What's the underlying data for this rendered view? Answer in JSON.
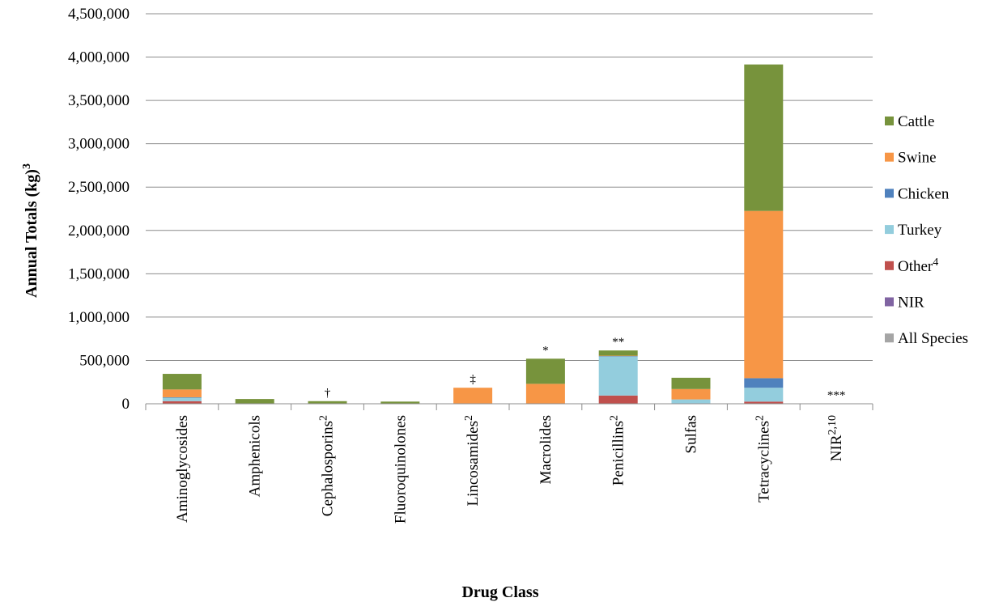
{
  "chart_data": {
    "type": "bar",
    "stacked": true,
    "xlabel": "Drug Class",
    "ylabel": "Annual Totals (kg)",
    "ylabel_sup": "3",
    "ylim": [
      0,
      4500000
    ],
    "ytick_step": 500000,
    "grid": true,
    "legend_position": "right",
    "categories": [
      {
        "name": "Aminoglycosides",
        "sup": ""
      },
      {
        "name": "Amphenicols",
        "sup": ""
      },
      {
        "name": "Cephalosporins",
        "sup": "2"
      },
      {
        "name": "Fluoroquinolones",
        "sup": ""
      },
      {
        "name": "Lincosamides",
        "sup": "2"
      },
      {
        "name": "Macrolides",
        "sup": ""
      },
      {
        "name": "Penicillins",
        "sup": "2"
      },
      {
        "name": "Sulfas",
        "sup": ""
      },
      {
        "name": "Tetracyclines",
        "sup": "2"
      },
      {
        "name": "NIR",
        "sup": "2,10"
      }
    ],
    "markers": [
      "",
      "",
      "†",
      "",
      "‡",
      "*",
      "**",
      "",
      "",
      "***"
    ],
    "series": [
      {
        "name": "All Species",
        "sup": "",
        "color": "#a5a5a5",
        "values": [
          0,
          0,
          0,
          0,
          0,
          0,
          0,
          0,
          0,
          0
        ]
      },
      {
        "name": "NIR",
        "sup": "",
        "color": "#8064a2",
        "values": [
          0,
          0,
          0,
          0,
          0,
          0,
          0,
          0,
          0,
          0
        ]
      },
      {
        "name": "Other",
        "sup": "4",
        "color": "#c0504d",
        "values": [
          30000,
          0,
          0,
          0,
          0,
          0,
          95000,
          5000,
          25000,
          0
        ]
      },
      {
        "name": "Turkey",
        "sup": "",
        "color": "#93cddd",
        "values": [
          40000,
          0,
          0,
          0,
          5000,
          0,
          450000,
          45000,
          160000,
          0
        ]
      },
      {
        "name": "Chicken",
        "sup": "",
        "color": "#4f81bd",
        "values": [
          5000,
          0,
          0,
          0,
          0,
          0,
          5000,
          0,
          110000,
          0
        ]
      },
      {
        "name": "Swine",
        "sup": "",
        "color": "#f79646",
        "values": [
          90000,
          5000,
          5000,
          0,
          180000,
          230000,
          5000,
          120000,
          1930000,
          0
        ]
      },
      {
        "name": "Cattle",
        "sup": "",
        "color": "#77933c",
        "values": [
          180000,
          50000,
          25000,
          25000,
          0,
          290000,
          60000,
          130000,
          1690000,
          0
        ]
      }
    ]
  }
}
